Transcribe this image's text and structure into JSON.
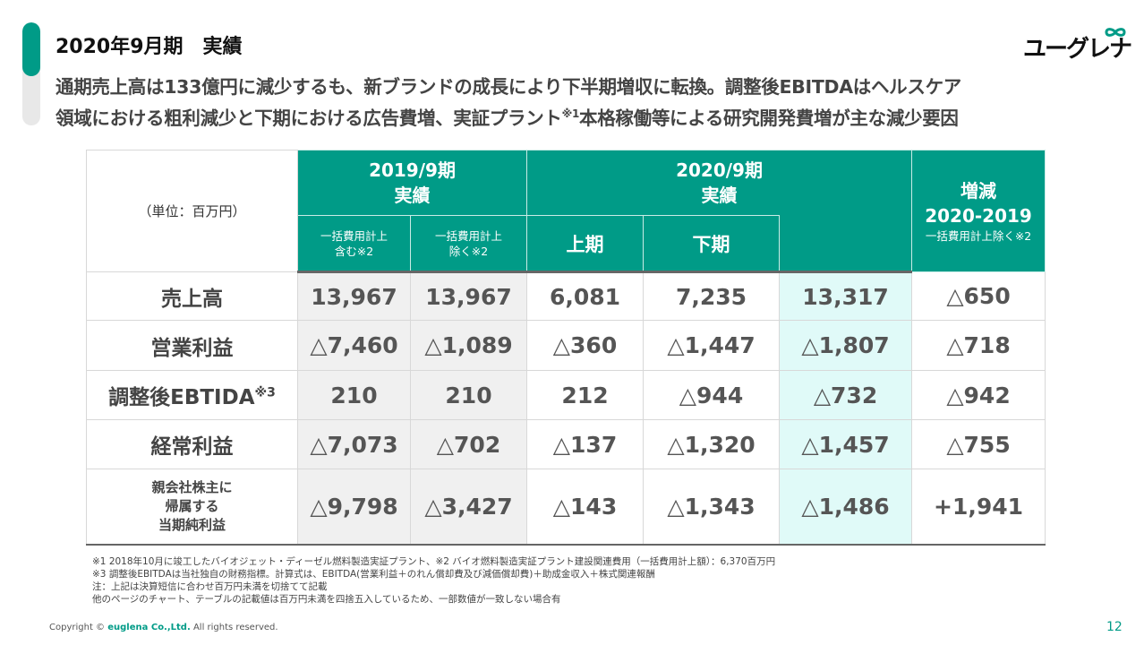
{
  "title": "2020年9月期　実績",
  "lead": {
    "line1": "通期売上高は133億円に減少するも、新ブランドの成長により下半期増収に転換。調整後EBITDAはヘルスケア",
    "line2a": "領域における粗利減少と下期における広告費増、実証プラント",
    "line2sup": "※1",
    "line2b": "本格稼働等による研究開発費増が主な減少要因"
  },
  "logo": {
    "text": "ユーグレナ",
    "color": "#009b87"
  },
  "colors": {
    "accent": "#009b87",
    "highlight": "#e0faf8",
    "shade": "#f0f0f0"
  },
  "table": {
    "unit": "（単位：百万円）",
    "h2019": [
      "2019/9期",
      "実績"
    ],
    "h2020": [
      "2020/9期",
      "実績"
    ],
    "hdiff": [
      "増減",
      "2020-2019",
      "一括費用計上除く※2"
    ],
    "sub": [
      [
        "一括費用計上",
        "含む※2"
      ],
      [
        "一括費用計上",
        "除く※2"
      ],
      "上期",
      "下期"
    ],
    "rows": [
      {
        "label": "売上高",
        "values": [
          "13,967",
          "13,967",
          "6,081",
          "7,235",
          "13,317",
          "△650"
        ]
      },
      {
        "label": "営業利益",
        "values": [
          "△7,460",
          "△1,089",
          "△360",
          "△1,447",
          "△1,807",
          "△718"
        ]
      },
      {
        "label": "調整後EBTIDA",
        "sup": "※3",
        "values": [
          "210",
          "210",
          "212",
          "△944",
          "△732",
          "△942"
        ]
      },
      {
        "label": "経常利益",
        "values": [
          "△7,073",
          "△702",
          "△137",
          "△1,320",
          "△1,457",
          "△755"
        ]
      },
      {
        "label": [
          "親会社株主に",
          "帰属する",
          "当期純利益"
        ],
        "values": [
          "△9,798",
          "△3,427",
          "△143",
          "△1,343",
          "△1,486",
          "+1,941"
        ]
      }
    ]
  },
  "notes": [
    "※1 2018年10月に竣工したバイオジェット・ディーゼル燃料製造実証プラント、※2 バイオ燃料製造実証プラント建設関連費用（一括費用計上額）：6,370百万円",
    "※3 調整後EBITDAは当社独自の財務指標。計算式は、EBITDA(営業利益＋のれん償却費及び減価償却費)＋助成金収入＋株式関連報酬",
    "注：上記は決算短信に合わせ百万円未満を切捨てて記載",
    "他のページのチャート、テーブルの記載値は百万円未満を四捨五入しているため、一部数値が一致しない場合有"
  ],
  "footer": {
    "copy_pre": "Copyright ©",
    "copy_brand": "euglena Co.,Ltd.",
    "copy_post": "All rights reserved.",
    "page": "12"
  }
}
